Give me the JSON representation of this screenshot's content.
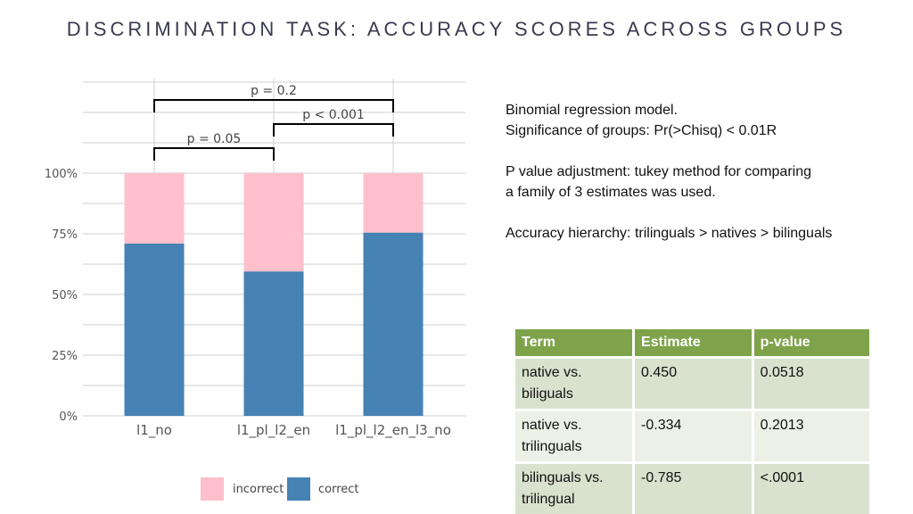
{
  "title": "DISCRIMINATION TASK: ACCURACY SCORES ACROSS GROUPS",
  "chart_data": {
    "type": "bar",
    "stacked": true,
    "categories": [
      "l1_no",
      "l1_pl_l2_en",
      "l1_pl_l2_en_l3_no"
    ],
    "series": [
      {
        "name": "correct",
        "values": [
          71,
          59.5,
          75.5
        ],
        "color": "#4682b4"
      },
      {
        "name": "incorrect",
        "values": [
          29,
          40.5,
          24.5
        ],
        "color": "#ffc0cb"
      }
    ],
    "ylim": [
      0,
      100
    ],
    "yticks": [
      "0%",
      "25%",
      "50%",
      "75%",
      "100%"
    ],
    "legend_position": "bottom",
    "grid": true,
    "brackets": [
      {
        "from": 0,
        "to": 2,
        "label": "p = 0.2"
      },
      {
        "from": 1,
        "to": 2,
        "label": "p < 0.001"
      },
      {
        "from": 0,
        "to": 1,
        "label": "p = 0.05"
      }
    ]
  },
  "notes": {
    "line1": "Binomial regression model.",
    "line2": "Significance of groups:  Pr(>Chisq) < 0.01R",
    "line3": "P value adjustment: tukey method for comparing",
    "line4": "a family of 3 estimates was used.",
    "line5": "Accuracy hierarchy: trilinguals > natives > bilinguals"
  },
  "table": {
    "headers": [
      "Term",
      "Estimate",
      "p-value"
    ],
    "rows": [
      {
        "term": "native vs. biliguals",
        "estimate": "0.450",
        "p": "0.0518"
      },
      {
        "term": "native vs. trilinguals",
        "estimate": "-0.334",
        "p": "0.2013"
      },
      {
        "term": "bilinguals vs. trilingual",
        "estimate": "-0.785",
        "p": "<.0001"
      }
    ]
  },
  "legend": {
    "incorrect": "incorrect",
    "correct": "correct",
    "incorrect_color": "#ffc0cb",
    "correct_color": "#4682b4"
  }
}
